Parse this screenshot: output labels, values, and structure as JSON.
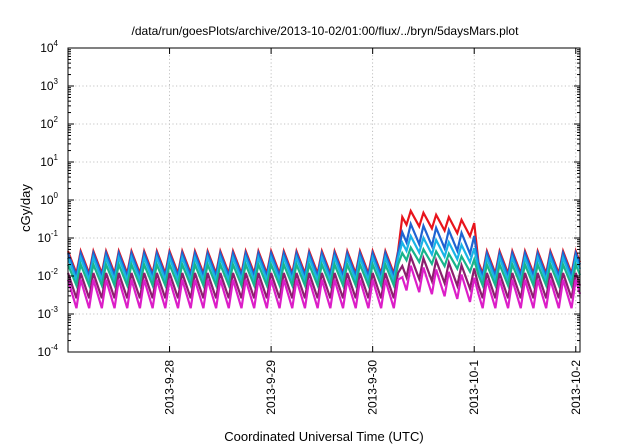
{
  "chart_data": {
    "type": "line",
    "title": "/data/run/goesPlots/archive/2013-10-02/01:00/flux/../bryn/5daysMars.plot",
    "xlabel": "Coordinated Universal Time (UTC)",
    "ylabel": "cGy/day",
    "yscale": "log",
    "ylim": [
      0.0001,
      10000
    ],
    "xlim": [
      "2013-09-27 00:00",
      "2013-10-02 01:00"
    ],
    "x_ticks": [
      "2013-9-28",
      "2013-9-29",
      "2013-9-30",
      "2013-10-1",
      "2013-10-2"
    ],
    "y_ticks": [
      {
        "base": "10",
        "exp": "4"
      },
      {
        "base": "10",
        "exp": "3"
      },
      {
        "base": "10",
        "exp": "2"
      },
      {
        "base": "10",
        "exp": "1"
      },
      {
        "base": "10",
        "exp": "0"
      },
      {
        "base": "10",
        "exp": "-1"
      },
      {
        "base": "10",
        "exp": "-2"
      },
      {
        "base": "10",
        "exp": "-3"
      },
      {
        "base": "10",
        "exp": "-4"
      }
    ],
    "grid": true,
    "legend": "none",
    "sawtooth_period_hours": 3,
    "series": [
      {
        "color": "#e8141c",
        "quiet_peak": 0.045,
        "quiet_trough": 0.006,
        "storm_peak": 0.55,
        "storm_trough": 0.15
      },
      {
        "color": "#1e64d2",
        "quiet_peak": 0.04,
        "quiet_trough": 0.005,
        "storm_peak": 0.25,
        "storm_trough": 0.045
      },
      {
        "color": "#19b4e6",
        "quiet_peak": 0.03,
        "quiet_trough": 0.004,
        "storm_peak": 0.12,
        "storm_trough": 0.03
      },
      {
        "color": "#18b48c",
        "quiet_peak": 0.02,
        "quiet_trough": 0.003,
        "storm_peak": 0.06,
        "storm_trough": 0.018
      },
      {
        "color": "#8c1e6e",
        "quiet_peak": 0.012,
        "quiet_trough": 0.0012,
        "storm_peak": 0.035,
        "storm_trough": 0.005
      },
      {
        "color": "#dc1ec8",
        "quiet_peak": 0.008,
        "quiet_trough": 0.0006,
        "storm_peak": 0.02,
        "storm_trough": 0.002
      }
    ],
    "storm_onset": "2013-09-30 07:00",
    "storm_end": "2013-10-01 00:00"
  }
}
